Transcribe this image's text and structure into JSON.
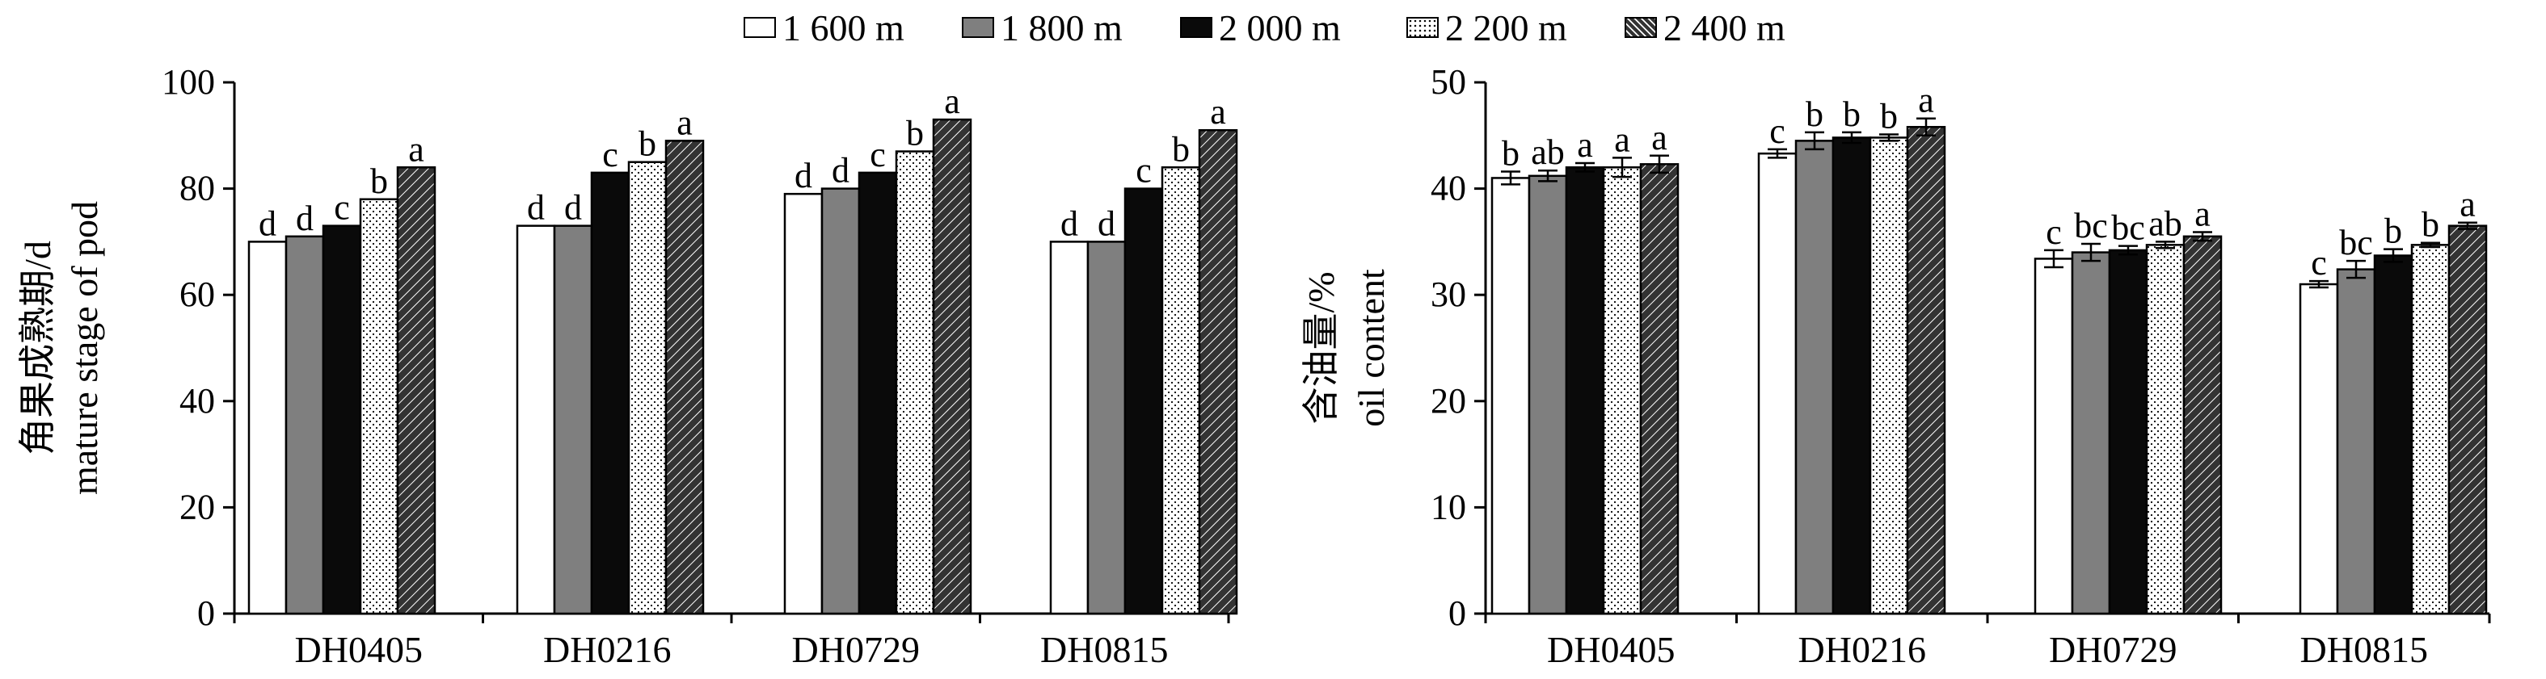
{
  "legend": [
    {
      "label": "1 600 m",
      "fill": "white"
    },
    {
      "label": "1 800 m",
      "fill": "gray"
    },
    {
      "label": "2 000 m",
      "fill": "black"
    },
    {
      "label": "2 200 m",
      "fill": "dots"
    },
    {
      "label": "2 400 m",
      "fill": "hatch"
    }
  ],
  "colors": {
    "gray": "#7f7f7f",
    "black": "#0a0a0a",
    "white": "#ffffff",
    "axis": "#000000"
  },
  "chart_data": [
    {
      "type": "bar",
      "categories": [
        "DH0405",
        "DH0216",
        "DH0729",
        "DH0815"
      ],
      "ylabel_cn": "角果成熟期/d",
      "ylabel_en": "mature stage of pod",
      "ylim": [
        0,
        100
      ],
      "yticks": [
        0,
        20,
        40,
        60,
        80,
        100
      ],
      "grid": false,
      "series": [
        {
          "name": "1 600 m",
          "values": [
            70,
            73,
            79,
            70
          ],
          "letters": [
            "d",
            "d",
            "d",
            "d"
          ]
        },
        {
          "name": "1 800 m",
          "values": [
            71,
            73,
            80,
            70
          ],
          "letters": [
            "d",
            "d",
            "d",
            "d"
          ]
        },
        {
          "name": "2 000 m",
          "values": [
            73,
            83,
            83,
            80
          ],
          "letters": [
            "c",
            "c",
            "c",
            "c"
          ]
        },
        {
          "name": "2 200 m",
          "values": [
            78,
            85,
            87,
            84
          ],
          "letters": [
            "b",
            "b",
            "b",
            "b"
          ]
        },
        {
          "name": "2 400 m",
          "values": [
            84,
            89,
            93,
            91
          ],
          "letters": [
            "a",
            "a",
            "a",
            "a"
          ]
        }
      ]
    },
    {
      "type": "bar",
      "categories": [
        "DH0405",
        "DH0216",
        "DH0729",
        "DH0815"
      ],
      "ylabel_cn": "含油量/%",
      "ylabel_en": "oil content",
      "ylim": [
        0,
        50
      ],
      "yticks": [
        0,
        10,
        20,
        30,
        40,
        50
      ],
      "grid": false,
      "series": [
        {
          "name": "1 600 m",
          "values": [
            41.0,
            43.3,
            33.4,
            31.0
          ],
          "errors": [
            0.6,
            0.4,
            0.8,
            0.3
          ],
          "letters": [
            "b",
            "c",
            "c",
            "c"
          ]
        },
        {
          "name": "1 800 m",
          "values": [
            41.2,
            44.5,
            34.0,
            32.4
          ],
          "errors": [
            0.5,
            0.8,
            0.8,
            0.8
          ],
          "letters": [
            "ab",
            "b",
            "bc",
            "bc"
          ]
        },
        {
          "name": "2 000 m",
          "values": [
            42.0,
            44.8,
            34.2,
            33.7
          ],
          "errors": [
            0.4,
            0.5,
            0.4,
            0.6
          ],
          "letters": [
            "a",
            "b",
            "bc",
            "b"
          ]
        },
        {
          "name": "2 200 m",
          "values": [
            42.0,
            44.8,
            34.7,
            34.7
          ],
          "errors": [
            0.9,
            0.3,
            0.3,
            0.2
          ],
          "letters": [
            "a",
            "b",
            "ab",
            "b"
          ]
        },
        {
          "name": "2 400 m",
          "values": [
            42.3,
            45.8,
            35.5,
            36.5
          ],
          "errors": [
            0.8,
            0.8,
            0.4,
            0.3
          ],
          "letters": [
            "a",
            "a",
            "a",
            "a"
          ]
        }
      ]
    }
  ]
}
